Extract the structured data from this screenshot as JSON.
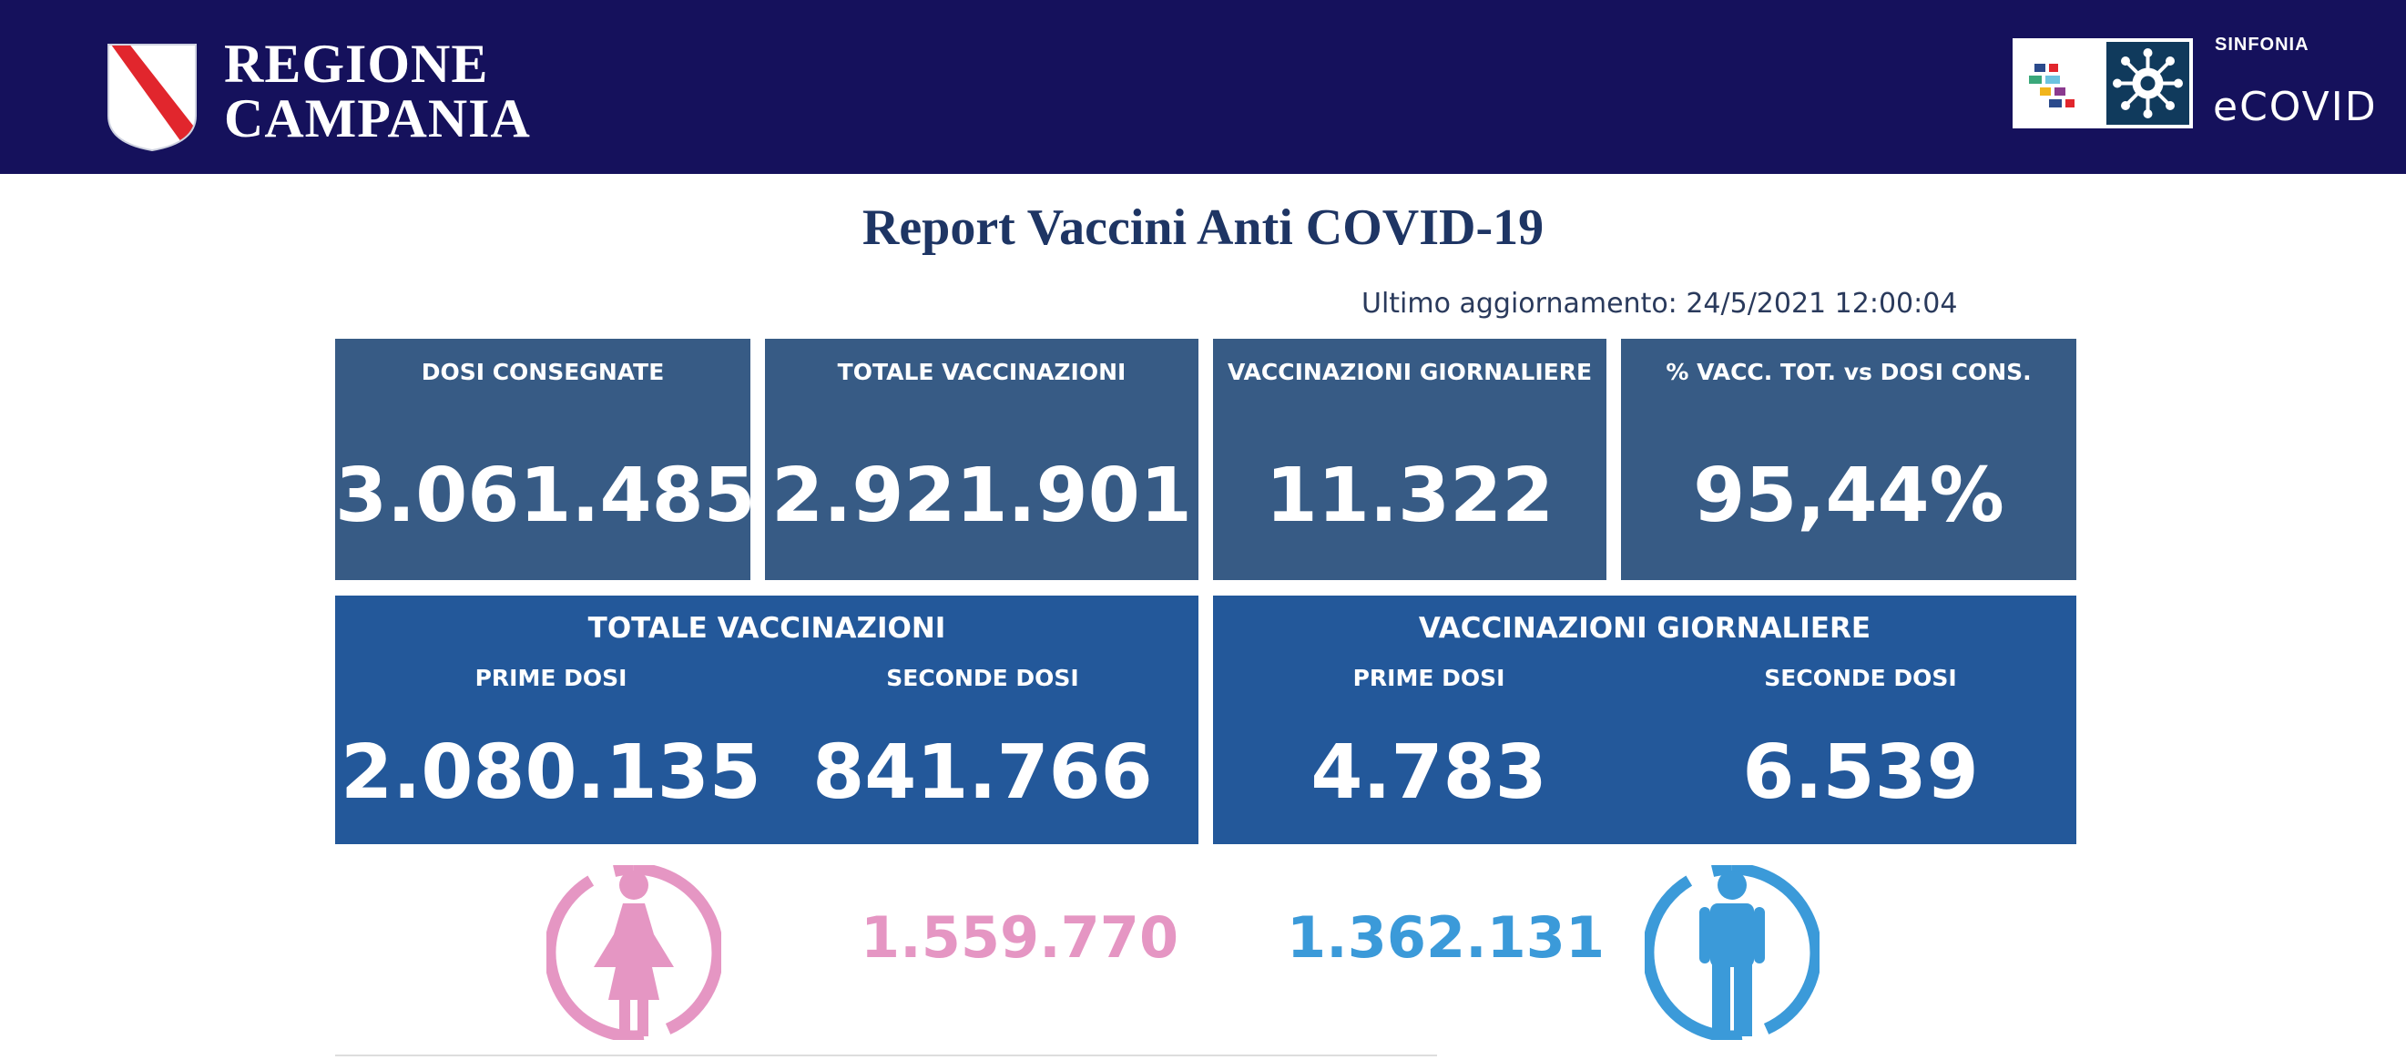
{
  "header": {
    "region_line1": "REGIONE",
    "region_line2": "CAMPANIA",
    "brand_small": "SINFONIA",
    "brand_name": "eCOVID",
    "colors": {
      "background": "#15115c",
      "crest_stripe": "#e1262d"
    }
  },
  "report": {
    "title": "Report Vaccini Anti COVID-19",
    "last_update": "Ultimo aggiornamento: 24/5/2021  12:00:04"
  },
  "kpis": [
    {
      "label": "DOSI  CONSEGNATE",
      "value": "3.061.485"
    },
    {
      "label": "TOTALE VACCINAZIONI",
      "value": "2.921.901"
    },
    {
      "label": "VACCINAZIONI GIORNALIERE",
      "value": "11.322"
    },
    {
      "label": "% VACC. TOT. vs DOSI CONS.",
      "value": "95,44%"
    }
  ],
  "breakdown": {
    "total": {
      "title": "TOTALE VACCINAZIONI",
      "first_label": "PRIME DOSI",
      "first_value": "2.080.135",
      "second_label": "SECONDE DOSI",
      "second_value": "841.766"
    },
    "daily": {
      "title": "VACCINAZIONI GIORNALIERE",
      "first_label": "PRIME DOSI",
      "first_value": "4.783",
      "second_label": "SECONDE DOSI",
      "second_value": "6.539"
    }
  },
  "gender": {
    "female_value": "1.559.770",
    "male_value": "1.362.131",
    "female_color": "#e596c3",
    "male_color": "#3b9ad9",
    "female_icon": "female-person-icon",
    "male_icon": "male-person-icon"
  }
}
